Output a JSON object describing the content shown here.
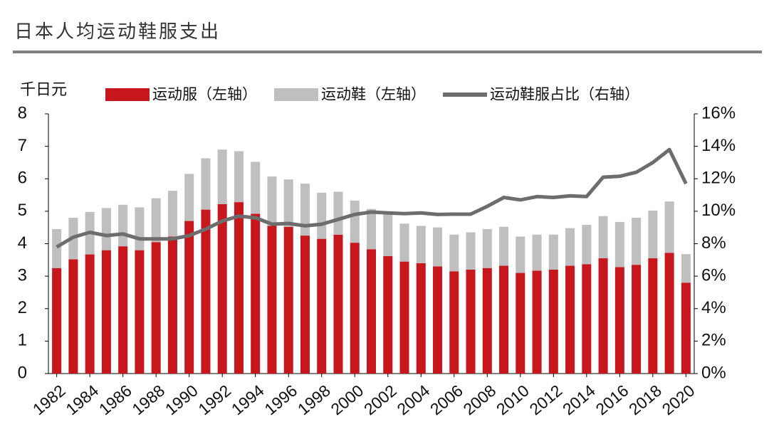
{
  "chart_data": {
    "type": "bar",
    "title": "日本人均运动鞋服支出",
    "y_label": "千日元",
    "categories": [
      "1982",
      null,
      "1984",
      null,
      "1986",
      null,
      "1988",
      null,
      "1990",
      null,
      "1992",
      null,
      "1994",
      null,
      "1996",
      null,
      "1998",
      null,
      "2000",
      null,
      "2002",
      null,
      "2004",
      null,
      "2006",
      null,
      "2008",
      null,
      "2010",
      null,
      "2012",
      null,
      "2014",
      null,
      "2016",
      null,
      "2018",
      null,
      "2020"
    ],
    "stacked": true,
    "series": [
      {
        "name": "运动服（左轴）",
        "color": "#c8161d",
        "values": [
          3.25,
          3.52,
          3.67,
          3.8,
          3.92,
          3.8,
          4.05,
          4.22,
          4.7,
          5.05,
          5.22,
          5.28,
          4.92,
          4.55,
          4.52,
          4.25,
          4.15,
          4.28,
          4.03,
          3.83,
          3.62,
          3.45,
          3.4,
          3.3,
          3.15,
          3.2,
          3.25,
          3.32,
          3.1,
          3.17,
          3.2,
          3.32,
          3.37,
          3.55,
          3.28,
          3.35,
          3.55,
          3.72,
          2.8
        ]
      },
      {
        "name": "运动鞋（左轴）",
        "color": "#bfbfbf",
        "values": [
          1.2,
          1.28,
          1.31,
          1.3,
          1.28,
          1.32,
          1.35,
          1.41,
          1.45,
          1.58,
          1.68,
          1.57,
          1.6,
          1.52,
          1.46,
          1.6,
          1.42,
          1.32,
          1.3,
          1.24,
          1.33,
          1.17,
          1.15,
          1.2,
          1.13,
          1.15,
          1.2,
          1.2,
          1.12,
          1.11,
          1.08,
          1.16,
          1.21,
          1.3,
          1.39,
          1.45,
          1.47,
          1.58,
          0.88
        ]
      },
      {
        "name": "运动鞋服占比（右轴）",
        "color": "#6d6d6d",
        "type": "line",
        "axis": "y2",
        "values": [
          7.8,
          8.4,
          8.7,
          8.5,
          8.6,
          8.3,
          8.3,
          8.3,
          8.5,
          8.9,
          9.4,
          9.7,
          9.6,
          9.2,
          9.25,
          9.1,
          9.2,
          9.5,
          9.8,
          9.95,
          9.9,
          9.85,
          9.9,
          9.8,
          9.82,
          9.82,
          10.3,
          10.85,
          10.7,
          10.9,
          10.85,
          10.95,
          10.9,
          12.1,
          12.15,
          12.4,
          13.0,
          13.8,
          11.7
        ]
      }
    ],
    "ylim": [
      0,
      8
    ],
    "yticks": [
      0,
      1,
      2,
      3,
      4,
      5,
      6,
      7,
      8
    ],
    "y2lim": [
      0,
      16
    ],
    "y2ticks": [
      {
        "value": 0,
        "label": "0%"
      },
      {
        "value": 2,
        "label": "2%"
      },
      {
        "value": 4,
        "label": "4%"
      },
      {
        "value": 6,
        "label": "6%"
      },
      {
        "value": 8,
        "label": "8%"
      },
      {
        "value": 10,
        "label": "10%"
      },
      {
        "value": 12,
        "label": "12%"
      },
      {
        "value": 14,
        "label": "14%"
      },
      {
        "value": 16,
        "label": "16%"
      }
    ],
    "grid": false
  }
}
